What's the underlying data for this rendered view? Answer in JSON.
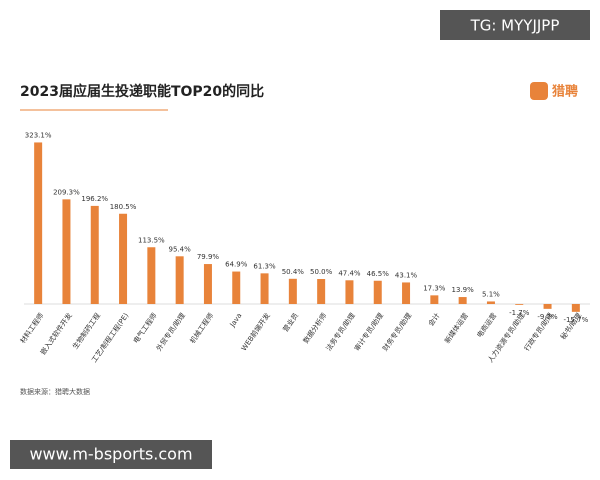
{
  "watermark": "TG: MYYJJPP",
  "brand": "猎聘",
  "source": "数据来源：猎聘大数据",
  "footer": "www.m-bsports.com",
  "chart_data": {
    "type": "bar",
    "title": "2023届应届生投递职能TOP20的同比",
    "color": "#e8833a",
    "categories": [
      "材料工程师",
      "嵌入式软件开发",
      "生物制药工程",
      "工艺/制程工程(PE)",
      "电气工程师",
      "外贸专员/助理",
      "机械工程师",
      "Java",
      "WEB前端开发",
      "营业员",
      "数据分析师",
      "法务专员/助理",
      "审计专员/助理",
      "财务专员/助理",
      "会计",
      "新媒体运营",
      "电商运营",
      "人力资源专员/助理",
      "行政专员/助理",
      "秘书/助理"
    ],
    "values": [
      323.1,
      209.3,
      196.2,
      180.5,
      113.5,
      95.4,
      79.9,
      64.9,
      61.3,
      50.4,
      50.0,
      47.4,
      46.5,
      43.1,
      17.3,
      13.9,
      5.1,
      -1.7,
      -9.7,
      -15.7
    ],
    "value_labels": [
      "323.1%",
      "209.3%",
      "196.2%",
      "180.5%",
      "113.5%",
      "95.4%",
      "79.9%",
      "64.9%",
      "61.3%",
      "50.4%",
      "50.0%",
      "47.4%",
      "46.5%",
      "43.1%",
      "17.3%",
      "13.9%",
      "5.1%",
      "-1.7%",
      "-9.7%",
      "-15.7%"
    ]
  }
}
